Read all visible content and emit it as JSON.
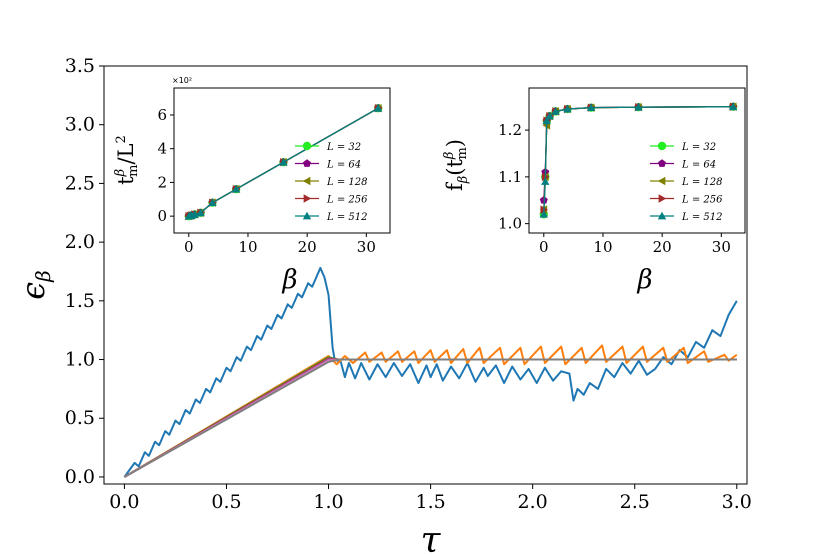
{
  "chart_data": [
    {
      "id": "main",
      "type": "line",
      "xlabel": "τ",
      "ylabel": "ϵ_β",
      "xlim": [
        -0.1,
        3.05
      ],
      "ylim": [
        -0.06,
        3.5
      ],
      "xticks": [
        0.0,
        0.5,
        1.0,
        1.5,
        2.0,
        2.5,
        3.0
      ],
      "xtick_labels": [
        "0.0",
        "0.5",
        "1.0",
        "1.5",
        "2.0",
        "2.5",
        "3.0"
      ],
      "yticks": [
        0.0,
        0.5,
        1.0,
        1.5,
        2.0,
        2.5,
        3.0,
        3.5
      ],
      "ytick_labels": [
        "0.0",
        "0.5",
        "1.0",
        "1.5",
        "2.0",
        "2.5",
        "3.0",
        "3.5"
      ],
      "series": [
        {
          "name": "series-blue",
          "color": "#1f77b4",
          "x": [
            0,
            0.05,
            0.07,
            0.1,
            0.12,
            0.15,
            0.17,
            0.2,
            0.22,
            0.25,
            0.27,
            0.3,
            0.32,
            0.35,
            0.37,
            0.4,
            0.42,
            0.45,
            0.47,
            0.5,
            0.52,
            0.55,
            0.57,
            0.6,
            0.62,
            0.65,
            0.67,
            0.7,
            0.72,
            0.75,
            0.77,
            0.8,
            0.82,
            0.85,
            0.87,
            0.9,
            0.92,
            0.96,
            0.98,
            1.0,
            1.02,
            1.03,
            1.06,
            1.08,
            1.1,
            1.13,
            1.16,
            1.2,
            1.24,
            1.28,
            1.32,
            1.36,
            1.4,
            1.44,
            1.48,
            1.5,
            1.53,
            1.56,
            1.6,
            1.64,
            1.68,
            1.72,
            1.76,
            1.78,
            1.82,
            1.86,
            1.9,
            1.94,
            1.98,
            2.02,
            2.06,
            2.1,
            2.14,
            2.18,
            2.2,
            2.22,
            2.25,
            2.28,
            2.32,
            2.36,
            2.4,
            2.44,
            2.48,
            2.52,
            2.56,
            2.6,
            2.64,
            2.68,
            2.72,
            2.76,
            2.8,
            2.84,
            2.88,
            2.92,
            2.96,
            3.0
          ],
          "y": [
            0.0,
            0.12,
            0.09,
            0.21,
            0.18,
            0.3,
            0.27,
            0.39,
            0.36,
            0.48,
            0.45,
            0.57,
            0.54,
            0.66,
            0.63,
            0.75,
            0.72,
            0.84,
            0.81,
            0.93,
            0.9,
            1.02,
            0.99,
            1.11,
            1.08,
            1.2,
            1.17,
            1.29,
            1.26,
            1.38,
            1.35,
            1.47,
            1.44,
            1.56,
            1.53,
            1.65,
            1.62,
            1.78,
            1.7,
            1.55,
            1.1,
            1.0,
            0.98,
            0.85,
            0.97,
            0.84,
            0.97,
            0.83,
            0.96,
            0.85,
            0.97,
            0.86,
            0.96,
            0.8,
            0.95,
            0.85,
            0.96,
            0.82,
            0.94,
            0.84,
            0.97,
            0.81,
            0.93,
            0.86,
            0.95,
            0.8,
            0.94,
            0.83,
            0.92,
            0.8,
            0.93,
            0.82,
            0.9,
            0.88,
            0.65,
            0.75,
            0.7,
            0.8,
            0.75,
            0.92,
            0.85,
            0.97,
            0.88,
            0.99,
            0.87,
            0.92,
            1.02,
            0.96,
            1.08,
            1.02,
            1.15,
            1.1,
            1.25,
            1.2,
            1.38,
            1.5
          ]
        },
        {
          "name": "series-orange",
          "color": "#ff7f0e",
          "x": [
            0,
            1.0,
            1.04,
            1.08,
            1.12,
            1.18,
            1.2,
            1.26,
            1.28,
            1.34,
            1.36,
            1.42,
            1.44,
            1.5,
            1.52,
            1.58,
            1.6,
            1.66,
            1.68,
            1.74,
            1.76,
            1.84,
            1.86,
            1.94,
            1.96,
            2.04,
            2.06,
            2.14,
            2.16,
            2.24,
            2.26,
            2.34,
            2.36,
            2.44,
            2.46,
            2.54,
            2.56,
            2.64,
            2.66,
            2.74,
            2.76,
            2.84,
            2.86,
            2.94,
            2.96,
            3.0
          ],
          "y": [
            0.0,
            1.03,
            0.96,
            1.03,
            0.97,
            1.06,
            0.98,
            1.06,
            0.98,
            1.07,
            0.98,
            1.07,
            0.97,
            1.08,
            0.98,
            1.08,
            0.97,
            1.09,
            0.97,
            1.1,
            0.97,
            1.1,
            0.96,
            1.1,
            0.96,
            1.11,
            0.97,
            1.11,
            0.96,
            1.1,
            0.97,
            1.12,
            0.98,
            1.11,
            0.97,
            1.11,
            0.98,
            1.1,
            0.98,
            1.1,
            0.97,
            1.07,
            0.98,
            1.04,
            0.99,
            1.04
          ]
        },
        {
          "name": "series-green",
          "color": "#2ca02c",
          "x": [
            0,
            1.0,
            1.05,
            1.5,
            2.0,
            2.5,
            3.0
          ],
          "y": [
            0.0,
            1.02,
            1.0,
            1.0,
            1.0,
            1.0,
            1.0
          ]
        },
        {
          "name": "series-red",
          "color": "#d62728",
          "x": [
            0,
            1.0,
            1.05,
            1.5,
            2.0,
            2.5,
            3.0
          ],
          "y": [
            0.0,
            1.01,
            1.0,
            1.0,
            1.0,
            1.0,
            1.0
          ]
        },
        {
          "name": "series-purple",
          "color": "#9467bd",
          "x": [
            0,
            1.0,
            1.05,
            1.5,
            2.0,
            2.5,
            3.0
          ],
          "y": [
            0.0,
            1.0,
            1.0,
            1.0,
            1.0,
            1.0,
            1.0
          ]
        },
        {
          "name": "series-brown",
          "color": "#8c564b",
          "x": [
            0,
            1.0,
            1.05,
            2.0,
            3.0
          ],
          "y": [
            0.0,
            0.99,
            1.0,
            1.0,
            1.0
          ]
        },
        {
          "name": "series-pink",
          "color": "#e377c2",
          "x": [
            0,
            1.0,
            1.05,
            2.0,
            3.0
          ],
          "y": [
            0.0,
            0.99,
            1.0,
            1.0,
            1.0
          ]
        },
        {
          "name": "series-gray",
          "color": "#7f7f7f",
          "x": [
            0,
            1.0,
            1.05,
            2.0,
            3.0
          ],
          "y": [
            0.0,
            0.98,
            1.0,
            1.0,
            1.0
          ]
        }
      ]
    },
    {
      "id": "inset-left",
      "type": "line",
      "xlabel": "β",
      "ylabel": "t_m^β/L^2",
      "multiplier": "×10²",
      "xlim": [
        -2.5,
        34
      ],
      "ylim": [
        -1.0,
        7.6
      ],
      "xticks": [
        0,
        10,
        20,
        30
      ],
      "xtick_labels": [
        "0",
        "10",
        "20",
        "30"
      ],
      "yticks": [
        0,
        2,
        4,
        6
      ],
      "ytick_labels": [
        "0",
        "2",
        "4",
        "6"
      ],
      "x": [
        0,
        0.25,
        0.5,
        1,
        2,
        4,
        8,
        16,
        32
      ],
      "series": [
        {
          "name": "L = 32",
          "color": "#22ee22",
          "marker": "circle",
          "values": [
            0.0,
            0.02,
            0.05,
            0.1,
            0.2,
            0.8,
            1.6,
            3.2,
            6.4
          ]
        },
        {
          "name": "L = 64",
          "color": "#800080",
          "marker": "pentagon",
          "values": [
            0.0,
            0.02,
            0.05,
            0.1,
            0.2,
            0.8,
            1.6,
            3.2,
            6.4
          ]
        },
        {
          "name": "L = 128",
          "color": "#808000",
          "marker": "triangle-left",
          "values": [
            0.0,
            0.02,
            0.05,
            0.1,
            0.2,
            0.8,
            1.6,
            3.2,
            6.4
          ]
        },
        {
          "name": "L = 256",
          "color": "#a52a2a",
          "marker": "triangle-right",
          "values": [
            0.0,
            0.02,
            0.05,
            0.1,
            0.2,
            0.8,
            1.6,
            3.2,
            6.4
          ]
        },
        {
          "name": "L = 512",
          "color": "#008080",
          "marker": "triangle-up",
          "values": [
            0.0,
            0.02,
            0.05,
            0.1,
            0.2,
            0.8,
            1.6,
            3.2,
            6.4
          ]
        }
      ],
      "legend": [
        "L = 32",
        "L = 64",
        "L = 128",
        "L = 256",
        "L = 512"
      ]
    },
    {
      "id": "inset-right",
      "type": "line",
      "xlabel": "β",
      "ylabel": "f_β(t_m^β)",
      "xlim": [
        -2.5,
        34
      ],
      "ylim": [
        0.98,
        1.29
      ],
      "xticks": [
        0,
        10,
        20,
        30
      ],
      "xtick_labels": [
        "0",
        "10",
        "20",
        "30"
      ],
      "yticks": [
        1.0,
        1.1,
        1.2
      ],
      "ytick_labels": [
        "1.0",
        "1.1",
        "1.2"
      ],
      "x": [
        0,
        0.25,
        0.5,
        1,
        2,
        4,
        8,
        16,
        32
      ],
      "series": [
        {
          "name": "L = 32",
          "color": "#22ee22",
          "marker": "circle",
          "values": [
            1.02,
            1.1,
            1.22,
            1.23,
            1.24,
            1.245,
            1.248,
            1.249,
            1.25
          ]
        },
        {
          "name": "L = 64",
          "color": "#800080",
          "marker": "pentagon",
          "values": [
            1.05,
            1.11,
            1.22,
            1.23,
            1.24,
            1.245,
            1.248,
            1.249,
            1.25
          ]
        },
        {
          "name": "L = 128",
          "color": "#808000",
          "marker": "triangle-left",
          "values": [
            1.03,
            1.1,
            1.21,
            1.23,
            1.24,
            1.245,
            1.248,
            1.249,
            1.25
          ]
        },
        {
          "name": "L = 256",
          "color": "#a52a2a",
          "marker": "triangle-right",
          "values": [
            1.03,
            1.1,
            1.22,
            1.23,
            1.24,
            1.245,
            1.248,
            1.249,
            1.25
          ]
        },
        {
          "name": "L = 512",
          "color": "#008080",
          "marker": "triangle-up",
          "values": [
            1.02,
            1.09,
            1.22,
            1.23,
            1.24,
            1.245,
            1.248,
            1.249,
            1.25
          ]
        }
      ],
      "legend": [
        "L = 32",
        "L = 64",
        "L = 128",
        "L = 256",
        "L = 512"
      ]
    }
  ]
}
